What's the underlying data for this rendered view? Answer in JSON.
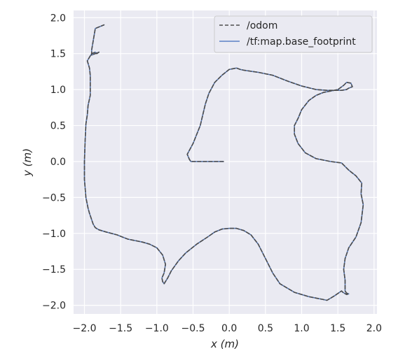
{
  "chart_data": {
    "type": "line",
    "title": "",
    "xlabel": "x (m)",
    "ylabel": "y (m)",
    "xlim": [
      -2.15,
      2.04
    ],
    "ylim": [
      -2.12,
      2.1
    ],
    "xticks": [
      -2.0,
      -1.5,
      -1.0,
      -0.5,
      0.0,
      0.5,
      1.0,
      1.5,
      2.0
    ],
    "yticks": [
      -2.0,
      -1.5,
      -1.0,
      -0.5,
      0.0,
      0.5,
      1.0,
      1.5,
      2.0
    ],
    "xtick_labels": [
      "−2.0",
      "−1.5",
      "−1.0",
      "−0.5",
      "0.0",
      "0.5",
      "1.0",
      "1.5",
      "2.0"
    ],
    "ytick_labels": [
      "−2.0",
      "−1.5",
      "−1.0",
      "−0.5",
      "0.0",
      "0.5",
      "1.0",
      "1.5",
      "2.0"
    ],
    "grid": true,
    "legend_position": "upper-right",
    "series": [
      {
        "name": "/odom",
        "style": "dashed",
        "color": "#4c4c4c",
        "x": [
          -0.08,
          -0.3,
          -0.53,
          -0.55,
          -0.58,
          -0.5,
          -0.4,
          -0.33,
          -0.28,
          -0.2,
          -0.1,
          0.0,
          0.1,
          0.15,
          0.2,
          0.4,
          0.6,
          0.8,
          1.0,
          1.2,
          1.35,
          1.55,
          1.62,
          1.65,
          1.7,
          1.68,
          1.62,
          1.58,
          1.5,
          1.4,
          1.3,
          1.2,
          1.1,
          1.0,
          0.95,
          0.9,
          0.9,
          0.95,
          1.05,
          1.2,
          1.4,
          1.55,
          1.58,
          1.65,
          1.75,
          1.83,
          1.82,
          1.85,
          1.82,
          1.75,
          1.65,
          1.6,
          1.58,
          1.6,
          1.6,
          1.62,
          1.65,
          1.62,
          1.57,
          1.55,
          1.45,
          1.35,
          1.3,
          1.1,
          0.9,
          0.7,
          0.6,
          0.5,
          0.4,
          0.3,
          0.2,
          0.1,
          0.0,
          -0.1,
          -0.2,
          -0.3,
          -0.45,
          -0.6,
          -0.7,
          -0.8,
          -0.85,
          -0.9,
          -0.92,
          -0.93,
          -0.9,
          -0.88,
          -0.92,
          -1.0,
          -1.1,
          -1.2,
          -1.4,
          -1.45,
          -1.55,
          -1.7,
          -1.8,
          -1.85,
          -1.88,
          -1.93,
          -1.95,
          -1.98,
          -2.0,
          -2.0,
          -1.99,
          -1.98,
          -1.96,
          -1.95,
          -1.92,
          -1.92,
          -1.93,
          -1.96,
          -1.9,
          -1.85,
          -1.83,
          -1.8,
          -1.9,
          -1.9,
          -1.85,
          -1.73
        ],
        "y": [
          0.0,
          0.0,
          0.0,
          0.03,
          0.1,
          0.25,
          0.5,
          0.8,
          0.95,
          1.1,
          1.2,
          1.28,
          1.3,
          1.28,
          1.27,
          1.24,
          1.2,
          1.12,
          1.05,
          1.0,
          0.99,
          0.99,
          1.0,
          1.02,
          1.04,
          1.09,
          1.1,
          1.06,
          1.0,
          0.98,
          0.96,
          0.92,
          0.85,
          0.72,
          0.6,
          0.5,
          0.38,
          0.25,
          0.12,
          0.04,
          0.0,
          -0.02,
          -0.05,
          -0.12,
          -0.2,
          -0.3,
          -0.45,
          -0.6,
          -0.85,
          -1.05,
          -1.2,
          -1.35,
          -1.5,
          -1.65,
          -1.8,
          -1.83,
          -1.84,
          -1.85,
          -1.82,
          -1.8,
          -1.87,
          -1.93,
          -1.92,
          -1.88,
          -1.82,
          -1.7,
          -1.55,
          -1.35,
          -1.15,
          -1.02,
          -0.96,
          -0.93,
          -0.93,
          -0.94,
          -0.98,
          -1.05,
          -1.15,
          -1.27,
          -1.38,
          -1.52,
          -1.62,
          -1.7,
          -1.67,
          -1.62,
          -1.55,
          -1.43,
          -1.3,
          -1.2,
          -1.15,
          -1.12,
          -1.08,
          -1.06,
          -1.02,
          -0.98,
          -0.95,
          -0.92,
          -0.87,
          -0.72,
          -0.65,
          -0.5,
          -0.25,
          0.0,
          0.3,
          0.52,
          0.65,
          0.78,
          0.92,
          1.2,
          1.3,
          1.4,
          1.5,
          1.52,
          1.5,
          1.52,
          1.48,
          1.55,
          1.85,
          1.9
        ]
      },
      {
        "name": "/tf:map.base_footprint",
        "style": "solid",
        "color": "#5a80c5",
        "x": [
          -0.08,
          -0.3,
          -0.53,
          -0.55,
          -0.58,
          -0.5,
          -0.4,
          -0.33,
          -0.28,
          -0.2,
          -0.1,
          0.0,
          0.1,
          0.15,
          0.2,
          0.4,
          0.6,
          0.8,
          1.0,
          1.2,
          1.35,
          1.55,
          1.62,
          1.65,
          1.7,
          1.68,
          1.62,
          1.58,
          1.5,
          1.4,
          1.3,
          1.2,
          1.1,
          1.0,
          0.95,
          0.9,
          0.9,
          0.95,
          1.05,
          1.2,
          1.4,
          1.55,
          1.58,
          1.65,
          1.75,
          1.83,
          1.82,
          1.85,
          1.82,
          1.75,
          1.65,
          1.6,
          1.58,
          1.6,
          1.6,
          1.62,
          1.65,
          1.62,
          1.57,
          1.55,
          1.45,
          1.35,
          1.3,
          1.1,
          0.9,
          0.7,
          0.6,
          0.5,
          0.4,
          0.3,
          0.2,
          0.1,
          0.0,
          -0.1,
          -0.2,
          -0.3,
          -0.45,
          -0.6,
          -0.7,
          -0.8,
          -0.85,
          -0.9,
          -0.92,
          -0.93,
          -0.9,
          -0.88,
          -0.92,
          -1.0,
          -1.1,
          -1.2,
          -1.4,
          -1.45,
          -1.55,
          -1.7,
          -1.8,
          -1.85,
          -1.88,
          -1.93,
          -1.95,
          -1.98,
          -2.0,
          -2.0,
          -1.99,
          -1.98,
          -1.96,
          -1.95,
          -1.92,
          -1.92,
          -1.93,
          -1.96,
          -1.9,
          -1.85,
          -1.83,
          -1.8,
          -1.9,
          -1.9,
          -1.85,
          -1.73
        ],
        "y": [
          0.0,
          0.0,
          0.0,
          0.03,
          0.1,
          0.25,
          0.5,
          0.8,
          0.95,
          1.1,
          1.2,
          1.28,
          1.3,
          1.28,
          1.27,
          1.24,
          1.2,
          1.12,
          1.05,
          1.0,
          0.99,
          0.99,
          1.0,
          1.02,
          1.04,
          1.09,
          1.1,
          1.06,
          1.0,
          0.98,
          0.96,
          0.92,
          0.85,
          0.72,
          0.6,
          0.5,
          0.38,
          0.25,
          0.12,
          0.04,
          0.0,
          -0.02,
          -0.05,
          -0.12,
          -0.2,
          -0.3,
          -0.45,
          -0.6,
          -0.85,
          -1.05,
          -1.2,
          -1.35,
          -1.5,
          -1.65,
          -1.8,
          -1.83,
          -1.84,
          -1.85,
          -1.82,
          -1.8,
          -1.87,
          -1.93,
          -1.92,
          -1.88,
          -1.82,
          -1.7,
          -1.55,
          -1.35,
          -1.15,
          -1.02,
          -0.96,
          -0.93,
          -0.93,
          -0.94,
          -0.98,
          -1.05,
          -1.15,
          -1.27,
          -1.38,
          -1.52,
          -1.62,
          -1.7,
          -1.67,
          -1.62,
          -1.55,
          -1.43,
          -1.3,
          -1.2,
          -1.15,
          -1.12,
          -1.08,
          -1.06,
          -1.02,
          -0.98,
          -0.95,
          -0.92,
          -0.87,
          -0.72,
          -0.65,
          -0.5,
          -0.25,
          0.0,
          0.3,
          0.52,
          0.65,
          0.78,
          0.92,
          1.2,
          1.3,
          1.4,
          1.5,
          1.52,
          1.5,
          1.52,
          1.48,
          1.55,
          1.85,
          1.9
        ]
      }
    ]
  }
}
